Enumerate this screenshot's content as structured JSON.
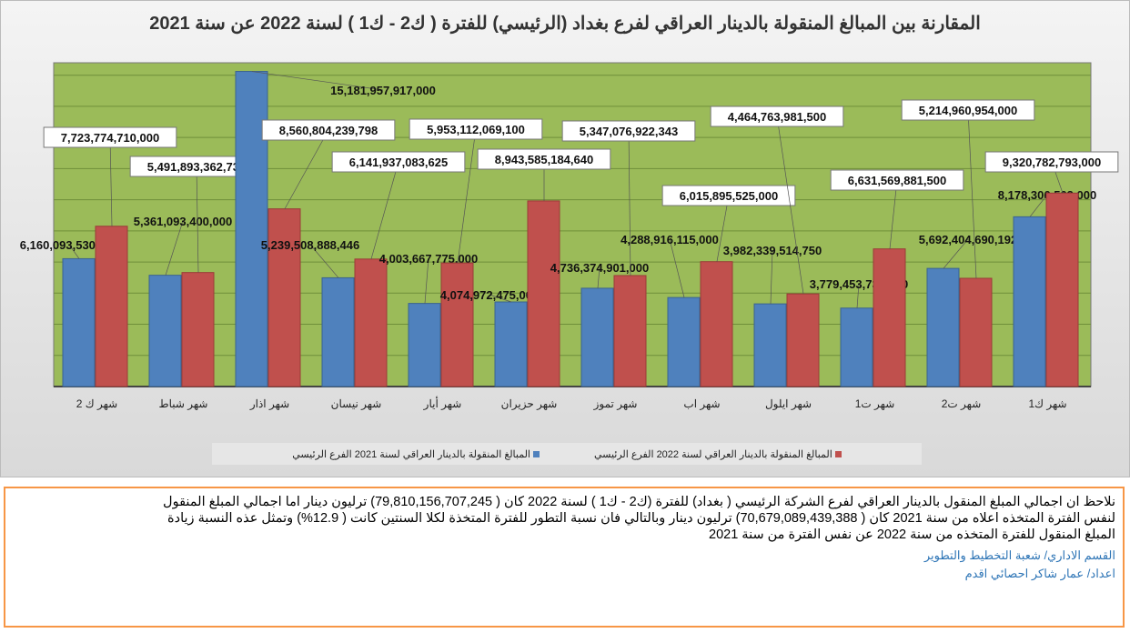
{
  "chart_data": {
    "type": "bar",
    "title": "المقارنة بين المبالغ المنقولة بالدينار العراقي لفرع بغداد (الرئيسي) للفترة ( ك2 - ك1 ) لسنة 2022 عن سنة 2021",
    "categories": [
      "شهر ك 2",
      "شهر شباط",
      "شهر اذار",
      "شهر نيسان",
      "شهر أيار",
      "شهر حزيران",
      "شهر تموز",
      "شهر اب",
      "شهر ايلول",
      "شهر ت1",
      "شهر ت2",
      "شهر ك1"
    ],
    "series": [
      {
        "name": "المبالغ المنقولة بالدينار العراقي لسنة 2021 الفرع الرئيسي",
        "color": "#4f81bd",
        "values": [
          6160093530000,
          5361093400000,
          15181957917000,
          5239508888446,
          4003667775000,
          4074972475000,
          4736374901000,
          4288916115000,
          3982339514750,
          3779453730000,
          5692404690192,
          8178306503000
        ],
        "labels": [
          "6,160,093,530,000",
          "5,361,093,400,000",
          "15,181,957,917,000",
          "5,239,508,888,446",
          "4,003,667,775,000",
          "4,074,972,475,000",
          "4,736,374,901,000",
          "4,288,916,115,000",
          "3,982,339,514,750",
          "3,779,453,730,000",
          "5,692,404,690,192",
          "8,178,306,503,000"
        ]
      },
      {
        "name": "المبالغ المنقولة بالدينار العراقي لسنة 2022 الفرع الرئيسي",
        "color": "#c0504d",
        "values": [
          7723774710000,
          5491893362739,
          8560804239798,
          6141937083625,
          5953112069100,
          8943585184640,
          5347076922343,
          6015895525000,
          4464763981500,
          6631569881500,
          5214960954000,
          9320782793000
        ],
        "labels": [
          "7,723,774,710,000",
          "5,491,893,362,739",
          "8,560,804,239,798",
          "6,141,937,083,625",
          "5,953,112,069,100",
          "8,943,585,184,640",
          "5,347,076,922,343",
          "6,015,895,525,000",
          "4,464,763,981,500",
          "6,631,569,881,500",
          "5,214,960,954,000",
          "9,320,782,793,000"
        ]
      }
    ],
    "ylim": [
      0,
      15600000000000
    ],
    "grid": true,
    "legend": "bottom",
    "plot_bg": "#9bbb59"
  },
  "note": {
    "line1": "نلاحظ ان اجمالي المبلغ المنقول بالدينار العراقي لفرع الشركة الرئيسي ( بغداد) للفترة (ك2 - ك1 ) لسنة 2022 كان ( 79,810,156,707,245) ترليون دينار اما اجمالي المبلغ المنقول",
    "line2": "لنفس الفترة المتخذه اعلاه من سنة 2021 كان ( 70,679,089,439,388) ترليون دينار وبالتالي فان نسبة التطور للفترة المتخذة لكلا السنتين كانت ( 12.9%) وتمثل عذه النسبة زيادة",
    "line3": "المبلغ المنقول للفترة المتخذه من سنة 2022 عن نفس الفترة من سنة 2021",
    "dept": "القسم الاداري/ شعبة التخطيط والتطوير",
    "author": "اعداد/ عمار شاكر احصائي اقدم"
  }
}
